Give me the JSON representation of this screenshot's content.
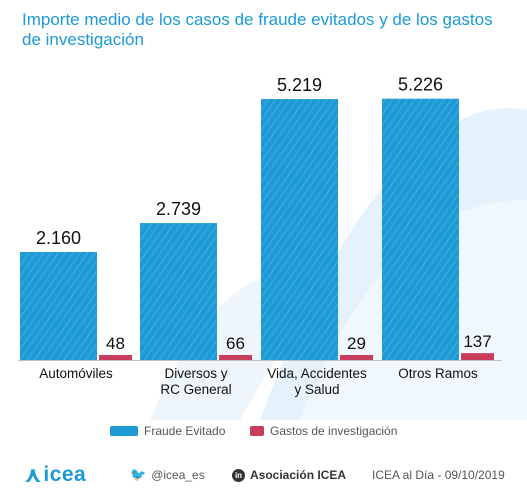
{
  "title": "Importe medio de los casos de fraude evitados y de los gastos de investigación",
  "colors": {
    "fraude": "#1b9ad6",
    "gastos": "#c93d5c",
    "title": "#1b9ad6",
    "background_shape": "#e4f1fa"
  },
  "chart_data": {
    "type": "bar",
    "title": "Importe medio de los casos de fraude evitados y de los gastos de investigación",
    "categories": [
      "Automóviles",
      "Diversos y RC General",
      "Vida, Accidentes y Salud",
      "Otros Ramos"
    ],
    "category_lines": [
      [
        "Automóviles"
      ],
      [
        "Diversos y",
        "RC General"
      ],
      [
        "Vida, Accidentes",
        "y Salud"
      ],
      [
        "Otros Ramos"
      ]
    ],
    "series": [
      {
        "name": "Fraude Evitado",
        "values": [
          2160,
          2739,
          5219,
          5226
        ],
        "labels": [
          "2.160",
          "2.739",
          "5.219",
          "5.226"
        ]
      },
      {
        "name": "Gastos de investigación",
        "values": [
          48,
          66,
          29,
          137
        ],
        "labels": [
          "48",
          "66",
          "29",
          "137"
        ]
      }
    ],
    "ylim": [
      0,
      5300
    ],
    "grid": false,
    "legend": "bottom"
  },
  "legend": [
    {
      "label": "Fraude Evitado",
      "color": "#1b9ad6"
    },
    {
      "label": "Gastos de investigación",
      "color": "#c93d5c"
    }
  ],
  "footer": {
    "logo": "icea",
    "twitter": "@icea_es",
    "linkedin": "Asociación ICEA",
    "source": "ICEA al Día - 09/10/2019"
  },
  "icons": {
    "twitter": "twitter-icon",
    "linkedin": "linkedin-icon"
  }
}
